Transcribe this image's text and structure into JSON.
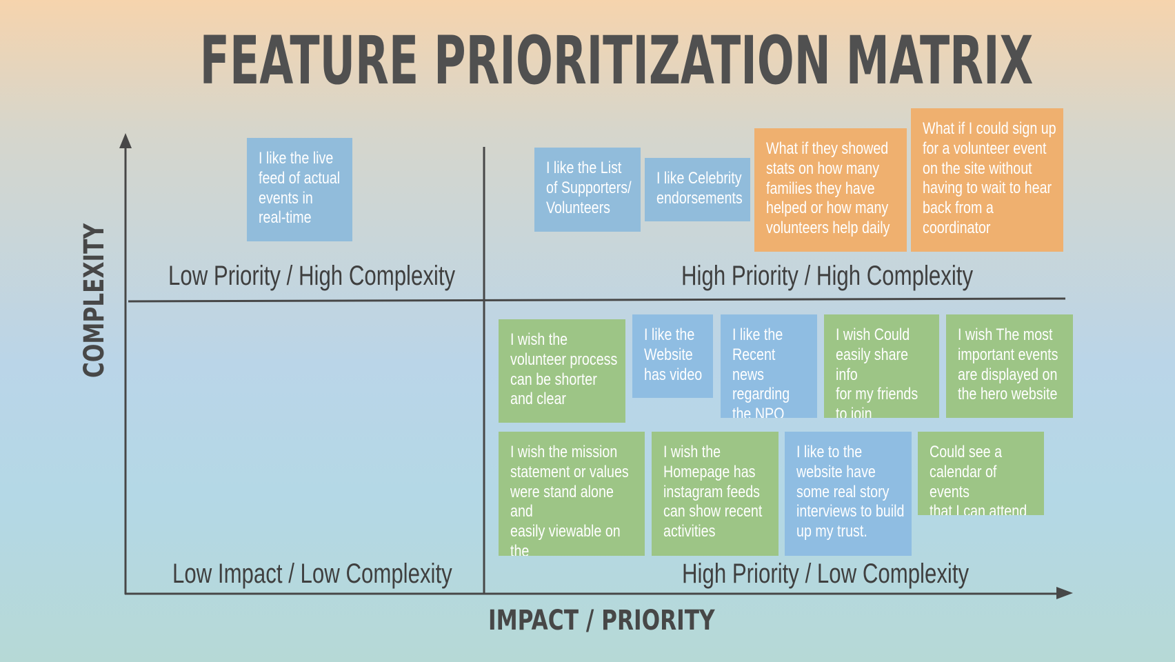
{
  "title": "FEATURE PRIORITIZATION MATRIX",
  "axes": {
    "y_label": "COMPLEXITY",
    "x_label": "IMPACT / PRIORITY"
  },
  "quadrants": {
    "top_left": "Low Priority / High Complexity",
    "top_right": "High Priority / High Complexity",
    "bottom_left": "Low Impact / Low Complexity",
    "bottom_right": "High Priority / Low Complexity"
  },
  "colors": {
    "blue_note": "#91bcdb",
    "green_note": "#9dc586",
    "orange_note": "#efb06f",
    "axis_line": "#474747"
  },
  "notes": {
    "live_feed": "I like the live\nfeed of actual\nevents in\nreal-time",
    "supporters": "I like the List\nof Supporters/\nVolunteers",
    "celebrity": "I like Celebrity\nendorsements",
    "stats": "What if they showed\nstats on how many\nfamilies they have\nhelped or how many\nvolunteers help daily",
    "signup": "What if I could sign up\nfor a volunteer event\non the site without\nhaving to wait to hear\nback from a\ncoordinator",
    "volunteer_process": "I wish the\nvolunteer process\ncan be shorter\nand clear",
    "video": "I like the\nWebsite\nhas video",
    "recent_news": "I like the\nRecent news\nregarding\nthe NPO",
    "share_info": "I wish Could\neasily share info\nfor my friends\nto join",
    "important_events": "I wish The most\nimportant events\nare displayed on\nthe hero website",
    "mission": "I wish the mission\nstatement or values\nwere stand alone and\neasily viewable on the\nhomepage",
    "instagram": "I wish the\nHomepage has\ninstagram feeds\ncan show recent\nactivities",
    "story": "I like to the\nwebsite have\nsome real story\ninterviews to build\nup my trust.",
    "calendar": "Could see a\ncalendar of events\nthat I can attend"
  }
}
